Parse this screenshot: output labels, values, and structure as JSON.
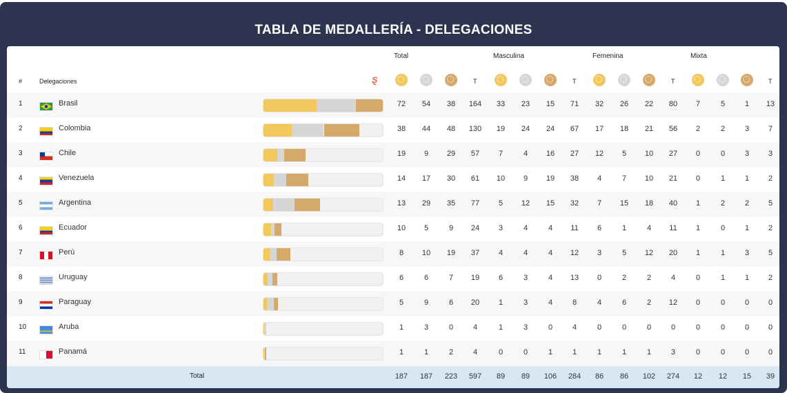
{
  "title": "TABLA DE MEDALLERÍA - DELEGACIONES",
  "groups": [
    "Total",
    "Masculina",
    "Femenina",
    "Mixta"
  ],
  "headers": {
    "rank": "#",
    "delegation": "Delegaciones",
    "total": "T"
  },
  "colors": {
    "gold": "#f2c75c",
    "silver": "#d6d6d6",
    "bronze": "#d4a96a",
    "header_bg": "#2d3450",
    "total_bg": "#d7e8f4"
  },
  "logo_icon": "sport-logo-icon",
  "rows": [
    {
      "rank": "1",
      "name": "Brasil",
      "flag": "brazil-flag",
      "total": [
        "72",
        "54",
        "38",
        "164"
      ],
      "masc": [
        "33",
        "23",
        "15",
        "71"
      ],
      "fem": [
        "32",
        "26",
        "22",
        "80"
      ],
      "mix": [
        "7",
        "5",
        "1",
        "13"
      ]
    },
    {
      "rank": "2",
      "name": "Colombia",
      "flag": "colombia-flag",
      "total": [
        "38",
        "44",
        "48",
        "130"
      ],
      "masc": [
        "19",
        "24",
        "24",
        "67"
      ],
      "fem": [
        "17",
        "18",
        "21",
        "56"
      ],
      "mix": [
        "2",
        "2",
        "3",
        "7"
      ]
    },
    {
      "rank": "3",
      "name": "Chile",
      "flag": "chile-flag",
      "total": [
        "19",
        "9",
        "29",
        "57"
      ],
      "masc": [
        "7",
        "4",
        "16",
        "27"
      ],
      "fem": [
        "12",
        "5",
        "10",
        "27"
      ],
      "mix": [
        "0",
        "0",
        "3",
        "3"
      ]
    },
    {
      "rank": "4",
      "name": "Venezuela",
      "flag": "venezuela-flag",
      "total": [
        "14",
        "17",
        "30",
        "61"
      ],
      "masc": [
        "10",
        "9",
        "19",
        "38"
      ],
      "fem": [
        "4",
        "7",
        "10",
        "21"
      ],
      "mix": [
        "0",
        "1",
        "1",
        "2"
      ]
    },
    {
      "rank": "5",
      "name": "Argentina",
      "flag": "argentina-flag",
      "total": [
        "13",
        "29",
        "35",
        "77"
      ],
      "masc": [
        "5",
        "12",
        "15",
        "32"
      ],
      "fem": [
        "7",
        "15",
        "18",
        "40"
      ],
      "mix": [
        "1",
        "2",
        "2",
        "5"
      ]
    },
    {
      "rank": "6",
      "name": "Ecuador",
      "flag": "ecuador-flag",
      "total": [
        "10",
        "5",
        "9",
        "24"
      ],
      "masc": [
        "3",
        "4",
        "4",
        "11"
      ],
      "fem": [
        "6",
        "1",
        "4",
        "11"
      ],
      "mix": [
        "1",
        "0",
        "1",
        "2"
      ]
    },
    {
      "rank": "7",
      "name": "Perú",
      "flag": "peru-flag",
      "total": [
        "8",
        "10",
        "19",
        "37"
      ],
      "masc": [
        "4",
        "4",
        "4",
        "12"
      ],
      "fem": [
        "3",
        "5",
        "12",
        "20"
      ],
      "mix": [
        "1",
        "1",
        "3",
        "5"
      ]
    },
    {
      "rank": "8",
      "name": "Uruguay",
      "flag": "uruguay-flag",
      "total": [
        "6",
        "6",
        "7",
        "19"
      ],
      "masc": [
        "6",
        "3",
        "4",
        "13"
      ],
      "fem": [
        "0",
        "2",
        "2",
        "4"
      ],
      "mix": [
        "0",
        "1",
        "1",
        "2"
      ]
    },
    {
      "rank": "9",
      "name": "Paraguay",
      "flag": "paraguay-flag",
      "total": [
        "5",
        "9",
        "6",
        "20"
      ],
      "masc": [
        "1",
        "3",
        "4",
        "8"
      ],
      "fem": [
        "4",
        "6",
        "2",
        "12"
      ],
      "mix": [
        "0",
        "0",
        "0",
        "0"
      ]
    },
    {
      "rank": "10",
      "name": "Aruba",
      "flag": "aruba-flag",
      "total": [
        "1",
        "3",
        "0",
        "4"
      ],
      "masc": [
        "1",
        "3",
        "0",
        "4"
      ],
      "fem": [
        "0",
        "0",
        "0",
        "0"
      ],
      "mix": [
        "0",
        "0",
        "0",
        "0"
      ]
    },
    {
      "rank": "11",
      "name": "Panamá",
      "flag": "panama-flag",
      "total": [
        "1",
        "1",
        "2",
        "4"
      ],
      "masc": [
        "0",
        "0",
        "1",
        "1"
      ],
      "fem": [
        "1",
        "1",
        "1",
        "3"
      ],
      "mix": [
        "0",
        "0",
        "0",
        "0"
      ]
    }
  ],
  "totals": {
    "label": "Total",
    "values": [
      "187",
      "187",
      "223",
      "597",
      "89",
      "89",
      "106",
      "284",
      "86",
      "86",
      "102",
      "274",
      "12",
      "12",
      "15",
      "39"
    ]
  }
}
